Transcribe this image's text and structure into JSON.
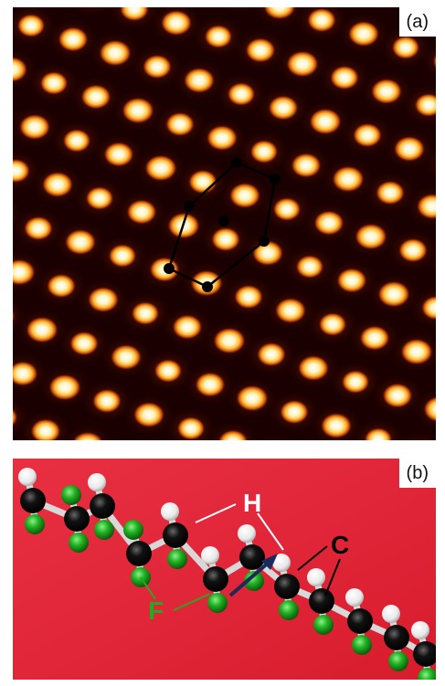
{
  "panel_a": {
    "label": "(a)"
  },
  "panel_b": {
    "label": "(b)",
    "atom_labels": {
      "hydrogen": "H",
      "carbon": "C",
      "fluorine": "F"
    }
  },
  "colors": {
    "stm_background": "#1a0000",
    "stm_spot_core": "#ffffff",
    "stm_spot_mid": "#ffcc33",
    "stm_spot_outer": "#cc4400",
    "model_background": "#e2263a",
    "hydrogen_label": "#ffffff",
    "carbon_label": "#000000",
    "fluorine_label": "#22aa22",
    "arrow": "#1a2a5a"
  }
}
